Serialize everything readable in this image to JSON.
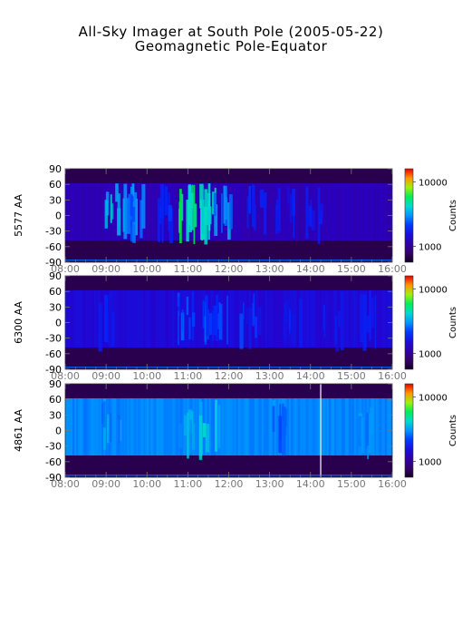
{
  "header": {
    "title": "All-Sky Imager at South Pole (2005-05-22)",
    "subtitle": "Geomagnetic Pole-Equator"
  },
  "chart_data": [
    {
      "type": "heatmap",
      "ylabel": "5577 AA",
      "x_ticks": [
        "08:00",
        "09:00",
        "10:00",
        "11:00",
        "12:00",
        "13:00",
        "14:00",
        "15:00",
        "16:00"
      ],
      "y_ticks": [
        "90",
        "60",
        "30",
        "0",
        "-30",
        "-60",
        "-90"
      ],
      "xlim": [
        "08:00",
        "16:00"
      ],
      "ylim": [
        -90,
        90
      ],
      "colorbar": {
        "label": "Counts",
        "ticks": [
          "10000",
          "1000"
        ],
        "scale": "log"
      },
      "valid_lat_range": [
        -48,
        62
      ],
      "base_level": 0.22,
      "bursts": [
        {
          "time": "09:10",
          "level": 0.62
        },
        {
          "time": "09:35",
          "level": 0.55
        },
        {
          "time": "09:45",
          "level": 0.5
        },
        {
          "time": "10:25",
          "level": 0.45
        },
        {
          "time": "10:55",
          "level": 0.72
        },
        {
          "time": "11:10",
          "level": 0.7
        },
        {
          "time": "11:35",
          "level": 0.65
        },
        {
          "time": "11:50",
          "level": 0.55
        },
        {
          "time": "12:40",
          "level": 0.4
        },
        {
          "time": "13:20",
          "level": 0.38
        },
        {
          "time": "14:00",
          "level": 0.4
        }
      ]
    },
    {
      "type": "heatmap",
      "ylabel": "6300 AA",
      "x_ticks": [
        "08:00",
        "09:00",
        "10:00",
        "11:00",
        "12:00",
        "13:00",
        "14:00",
        "15:00",
        "16:00"
      ],
      "y_ticks": [
        "90",
        "60",
        "30",
        "0",
        "-30",
        "-60",
        "-90"
      ],
      "xlim": [
        "08:00",
        "16:00"
      ],
      "ylim": [
        -90,
        90
      ],
      "colorbar": {
        "label": "Counts",
        "ticks": [
          "10000",
          "1000"
        ],
        "scale": "log"
      },
      "valid_lat_range": [
        -48,
        62
      ],
      "base_level": 0.28,
      "bursts": [
        {
          "time": "09:00",
          "level": 0.38
        },
        {
          "time": "10:55",
          "level": 0.45
        },
        {
          "time": "11:20",
          "level": 0.48
        },
        {
          "time": "11:45",
          "level": 0.45
        },
        {
          "time": "12:30",
          "level": 0.42
        },
        {
          "time": "13:30",
          "level": 0.4
        },
        {
          "time": "14:30",
          "level": 0.38
        },
        {
          "time": "15:20",
          "level": 0.36
        }
      ]
    },
    {
      "type": "heatmap",
      "ylabel": "4861 AA",
      "x_ticks": [
        "08:00",
        "09:00",
        "10:00",
        "11:00",
        "12:00",
        "13:00",
        "14:00",
        "15:00",
        "16:00"
      ],
      "y_ticks": [
        "90",
        "60",
        "30",
        "0",
        "-30",
        "-60",
        "-90"
      ],
      "xlim": [
        "08:00",
        "16:00"
      ],
      "ylim": [
        -90,
        90
      ],
      "colorbar": {
        "label": "Counts",
        "ticks": [
          "10000",
          "1000"
        ],
        "scale": "log"
      },
      "valid_lat_range": [
        -48,
        62
      ],
      "base_level": 0.48,
      "bursts": [
        {
          "time": "09:05",
          "level": 0.56
        },
        {
          "time": "10:55",
          "level": 0.6
        },
        {
          "time": "11:30",
          "level": 0.62
        },
        {
          "time": "13:10",
          "level": 0.52
        },
        {
          "time": "15:20",
          "level": 0.54
        }
      ],
      "marker_time": "14:15"
    }
  ]
}
